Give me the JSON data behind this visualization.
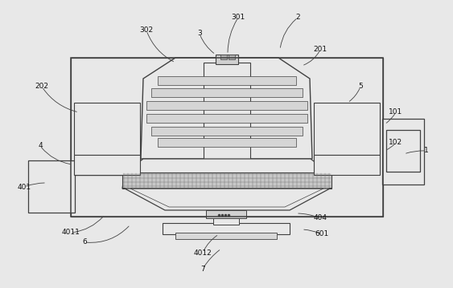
{
  "bg_color": "#e8e8e8",
  "line_color": "#404040",
  "lw": 0.9,
  "annotations": [
    [
      "2",
      370,
      22,
      348,
      62,
      0.2
    ],
    [
      "3",
      248,
      42,
      268,
      68,
      0.15
    ],
    [
      "301",
      296,
      22,
      283,
      68,
      0.15
    ],
    [
      "302",
      182,
      38,
      218,
      78,
      0.2
    ],
    [
      "201",
      398,
      62,
      375,
      82,
      -0.2
    ],
    [
      "5",
      448,
      108,
      432,
      128,
      -0.15
    ],
    [
      "202",
      52,
      108,
      98,
      140,
      0.2
    ],
    [
      "4",
      50,
      182,
      90,
      205,
      0.2
    ],
    [
      "401",
      30,
      233,
      58,
      228,
      -0.1
    ],
    [
      "101",
      492,
      140,
      478,
      155,
      -0.1
    ],
    [
      "102",
      492,
      178,
      478,
      188,
      -0.1
    ],
    [
      "1",
      530,
      188,
      502,
      192,
      0.1
    ],
    [
      "4011",
      88,
      290,
      130,
      268,
      0.2
    ],
    [
      "4012",
      252,
      315,
      272,
      292,
      -0.15
    ],
    [
      "6",
      105,
      302,
      162,
      280,
      0.25
    ],
    [
      "7",
      252,
      335,
      275,
      310,
      -0.1
    ],
    [
      "404",
      398,
      272,
      368,
      266,
      0.1
    ],
    [
      "601",
      400,
      292,
      375,
      286,
      0.1
    ]
  ]
}
